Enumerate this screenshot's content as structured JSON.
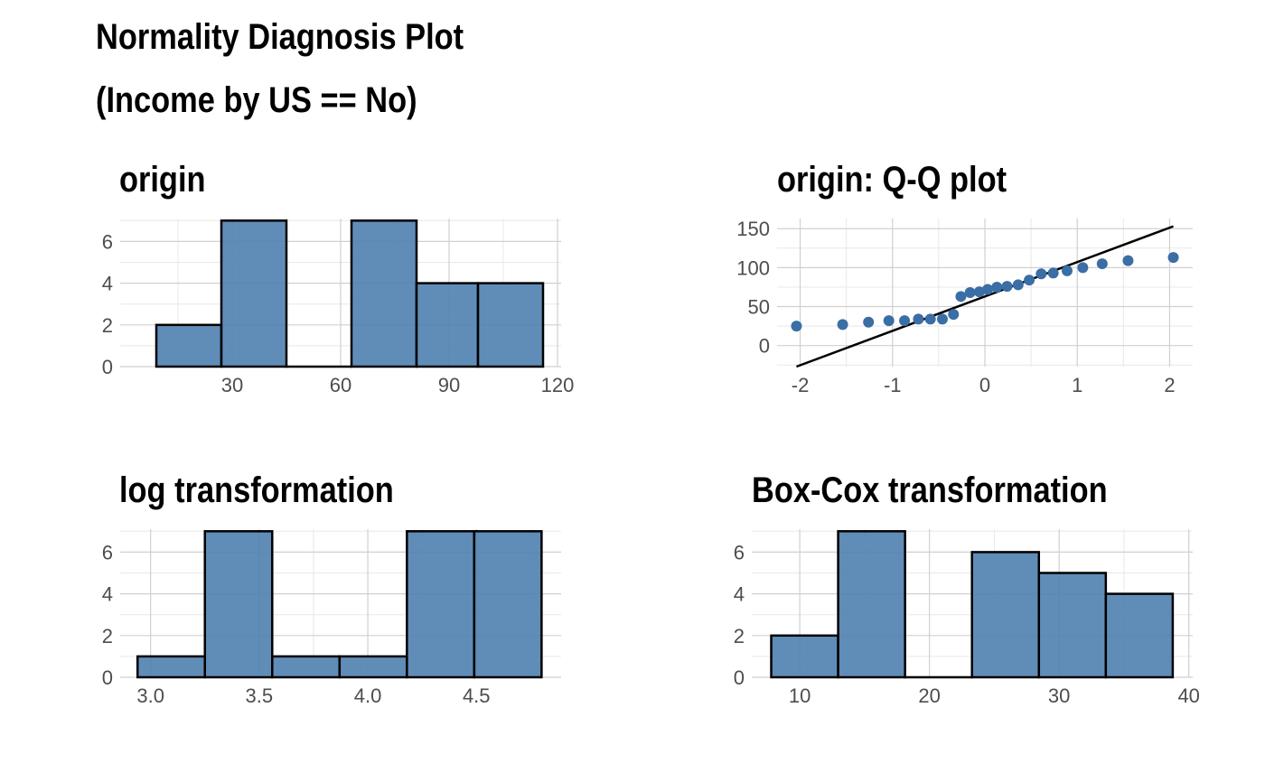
{
  "page": {
    "title_line1": "Normality Diagnosis Plot",
    "title_line2": "(Income by US == No)"
  },
  "colors": {
    "fill": "#4f7fb0",
    "point": "#3a6ea5",
    "outline": "#000000",
    "grid_major": "#d0d0d0",
    "grid_minor": "#e8e8e8",
    "tick_text": "#4d4d4d"
  },
  "chart_data": [
    {
      "id": "origin",
      "type": "bar",
      "title": "origin",
      "bin_edges": [
        9,
        27,
        45,
        63,
        81,
        98,
        116
      ],
      "values": [
        2,
        7,
        0,
        7,
        4,
        4
      ],
      "xlim": [
        -1,
        121
      ],
      "ylim": [
        0,
        7.1
      ],
      "xticks": [
        30,
        60,
        90,
        120
      ],
      "xtick_labels": [
        "30",
        "60",
        "90",
        "120"
      ],
      "yticks": [
        0,
        2,
        4,
        6
      ],
      "ytick_labels": [
        "0",
        "2",
        "4",
        "6"
      ],
      "grid": true
    },
    {
      "id": "qq",
      "type": "scatter",
      "title": "origin: Q-Q plot",
      "points": [
        [
          -2.04,
          25
        ],
        [
          -1.54,
          27
        ],
        [
          -1.26,
          30
        ],
        [
          -1.04,
          32
        ],
        [
          -0.87,
          32
        ],
        [
          -0.72,
          34
        ],
        [
          -0.59,
          34
        ],
        [
          -0.46,
          34
        ],
        [
          -0.34,
          40
        ],
        [
          -0.26,
          63
        ],
        [
          -0.16,
          68
        ],
        [
          -0.06,
          69
        ],
        [
          0.03,
          72
        ],
        [
          0.13,
          75
        ],
        [
          0.24,
          76
        ],
        [
          0.36,
          78
        ],
        [
          0.48,
          84
        ],
        [
          0.61,
          92
        ],
        [
          0.74,
          93
        ],
        [
          0.89,
          96
        ],
        [
          1.06,
          100
        ],
        [
          1.27,
          105
        ],
        [
          1.55,
          109
        ],
        [
          2.04,
          113
        ]
      ],
      "reference_line": {
        "x": [
          -2.04,
          2.04
        ],
        "y": [
          -27,
          153
        ]
      },
      "xlim": [
        -2.25,
        2.25
      ],
      "ylim": [
        -27,
        163
      ],
      "xticks": [
        -2,
        -1,
        0,
        1,
        2
      ],
      "xtick_labels": [
        "-2",
        "-1",
        "0",
        "1",
        "2"
      ],
      "yticks": [
        0,
        50,
        100,
        150
      ],
      "ytick_labels": [
        "0",
        "50",
        "100",
        "150"
      ],
      "grid": true
    },
    {
      "id": "log",
      "type": "bar",
      "title": "log transformation",
      "bin_edges": [
        2.94,
        3.25,
        3.56,
        3.87,
        4.18,
        4.49,
        4.8
      ],
      "values": [
        1,
        7,
        1,
        1,
        7,
        7
      ],
      "xlim": [
        2.86,
        4.89
      ],
      "ylim": [
        0,
        7.1
      ],
      "xticks": [
        3.0,
        3.5,
        4.0,
        4.5
      ],
      "xtick_labels": [
        "3.0",
        "3.5",
        "4.0",
        "4.5"
      ],
      "yticks": [
        0,
        2,
        4,
        6
      ],
      "ytick_labels": [
        "0",
        "2",
        "4",
        "6"
      ],
      "grid": true
    },
    {
      "id": "boxcox",
      "type": "bar",
      "title": "Box-Cox transformation",
      "bin_edges": [
        7.8,
        12.96,
        18.12,
        23.28,
        28.44,
        33.6,
        38.76
      ],
      "values": [
        2,
        7,
        0,
        6,
        5,
        4
      ],
      "xlim": [
        6.3,
        40.3
      ],
      "ylim": [
        0,
        7.1
      ],
      "xticks": [
        10,
        20,
        30,
        40
      ],
      "xtick_labels": [
        "10",
        "20",
        "30",
        "40"
      ],
      "yticks": [
        0,
        2,
        4,
        6
      ],
      "ytick_labels": [
        "0",
        "2",
        "4",
        "6"
      ],
      "grid": true
    }
  ]
}
